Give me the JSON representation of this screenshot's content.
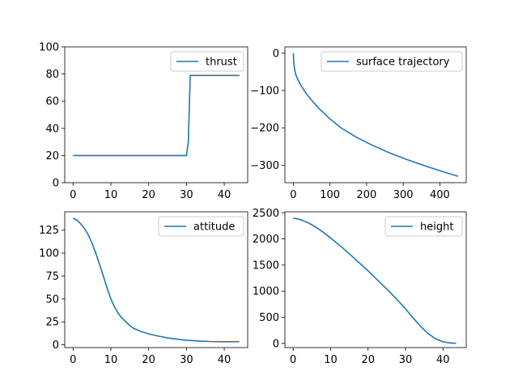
{
  "chart_data": [
    {
      "type": "line",
      "title": "",
      "xlabel": "",
      "ylabel": "",
      "xlim": [
        -2.2,
        46.2
      ],
      "ylim": [
        0,
        100
      ],
      "xticks": [
        0,
        10,
        20,
        30,
        40
      ],
      "yticks": [
        0,
        20,
        40,
        60,
        80,
        100
      ],
      "grid": false,
      "legend": "upper right",
      "color": "#1f77b4",
      "series": [
        {
          "name": "thrust",
          "x": [
            0,
            5,
            10,
            15,
            20,
            25,
            30,
            30.5,
            31,
            32,
            35,
            40,
            44
          ],
          "y": [
            20,
            20,
            20,
            20,
            20,
            20,
            20,
            30,
            79,
            79,
            79,
            79,
            79
          ]
        }
      ]
    },
    {
      "type": "line",
      "title": "",
      "xlabel": "",
      "ylabel": "",
      "xlim": [
        -23,
        472
      ],
      "ylim": [
        -347,
        17
      ],
      "xticks": [
        0,
        100,
        200,
        300,
        400
      ],
      "yticks": [
        0,
        -100,
        -200,
        -300
      ],
      "grid": false,
      "legend": "upper right",
      "color": "#1f77b4",
      "series": [
        {
          "name": "surface trajectory",
          "x": [
            0,
            1,
            3,
            6,
            12,
            20,
            35,
            50,
            70,
            100,
            130,
            170,
            210,
            260,
            310,
            360,
            410,
            450
          ],
          "y": [
            0,
            -20,
            -40,
            -55,
            -70,
            -85,
            -108,
            -126,
            -148,
            -176,
            -200,
            -224,
            -244,
            -266,
            -285,
            -302,
            -318,
            -330
          ]
        }
      ]
    },
    {
      "type": "line",
      "title": "",
      "xlabel": "",
      "ylabel": "",
      "xlim": [
        -2.2,
        46.2
      ],
      "ylim": [
        -3,
        145
      ],
      "xticks": [
        0,
        10,
        20,
        30,
        40
      ],
      "yticks": [
        0,
        25,
        50,
        75,
        100,
        125
      ],
      "grid": false,
      "legend": "upper right",
      "color": "#1f77b4",
      "series": [
        {
          "name": "attitude",
          "x": [
            0,
            1,
            2,
            3,
            4,
            5,
            6,
            7,
            8,
            9,
            10,
            11,
            12,
            13,
            14,
            15,
            16,
            18,
            20,
            22,
            25,
            28,
            30,
            33,
            36,
            40,
            44
          ],
          "y": [
            138,
            136,
            132,
            127,
            120,
            111,
            100,
            88,
            75,
            62,
            50,
            41,
            34,
            29,
            25,
            21,
            18,
            14.5,
            12,
            10,
            7.5,
            6,
            5,
            4.2,
            3.6,
            3.3,
            3.5
          ]
        }
      ]
    },
    {
      "type": "line",
      "title": "",
      "xlabel": "",
      "ylabel": "",
      "xlim": [
        -2.2,
        46.2
      ],
      "ylim": [
        -80,
        2520
      ],
      "xticks": [
        0,
        10,
        20,
        30,
        40
      ],
      "yticks": [
        0,
        500,
        1000,
        1500,
        2000,
        2500
      ],
      "grid": false,
      "legend": "upper right",
      "color": "#1f77b4",
      "series": [
        {
          "name": "height",
          "x": [
            0,
            2,
            4,
            6,
            8,
            10,
            12,
            14,
            16,
            18,
            20,
            22,
            24,
            26,
            28,
            30,
            32,
            34,
            36,
            38,
            40,
            42,
            43.5
          ],
          "y": [
            2400,
            2370,
            2310,
            2230,
            2130,
            2020,
            1900,
            1780,
            1650,
            1520,
            1390,
            1250,
            1110,
            970,
            820,
            660,
            490,
            330,
            190,
            90,
            30,
            8,
            2
          ]
        }
      ]
    }
  ]
}
